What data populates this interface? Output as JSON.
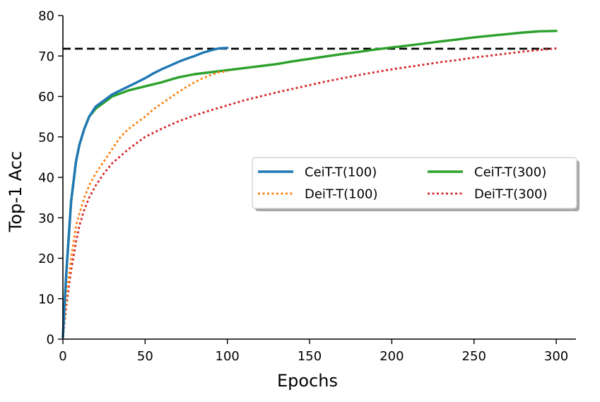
{
  "chart_data": {
    "type": "line",
    "title": "",
    "xlabel": "Epochs",
    "ylabel": "Top-1 Acc",
    "xlim": [
      0,
      312
    ],
    "ylim": [
      0,
      80
    ],
    "xticks": [
      0,
      50,
      100,
      150,
      200,
      250,
      300
    ],
    "yticks": [
      0,
      10,
      20,
      30,
      40,
      50,
      60,
      70,
      80
    ],
    "grid": false,
    "legend_position": "center-right",
    "reference_line": {
      "y": 71.8,
      "style": "dashed",
      "color": "#000000"
    },
    "series": [
      {
        "name": "CeiT-T(100)",
        "color": "#1f77b4",
        "style": "solid",
        "x": [
          0,
          2,
          5,
          8,
          10,
          13,
          16,
          20,
          25,
          30,
          35,
          40,
          45,
          50,
          55,
          60,
          65,
          70,
          75,
          80,
          85,
          90,
          95,
          100
        ],
        "y": [
          0.5,
          16,
          34,
          44,
          48,
          52,
          55,
          57.5,
          59,
          60.5,
          61.5,
          62.5,
          63.5,
          64.5,
          65.7,
          66.7,
          67.6,
          68.5,
          69.3,
          70,
          70.8,
          71.4,
          71.9,
          72
        ]
      },
      {
        "name": "DeiT-T(100)",
        "color": "#ff7f0e",
        "style": "dotted",
        "x": [
          0,
          2,
          5,
          8,
          10,
          13,
          16,
          20,
          25,
          30,
          35,
          40,
          45,
          50,
          55,
          60,
          65,
          70,
          75,
          80,
          85,
          90,
          95,
          100
        ],
        "y": [
          0.3,
          10,
          20,
          28,
          31,
          35,
          38,
          41,
          44,
          47,
          50,
          52,
          53.5,
          55,
          56.8,
          58.2,
          59.6,
          61,
          62.3,
          63.5,
          64.5,
          65.3,
          66,
          66.2
        ]
      },
      {
        "name": "CeiT-T(300)",
        "color": "#2ca02c",
        "style": "solid",
        "x": [
          0,
          2,
          5,
          8,
          10,
          13,
          16,
          20,
          25,
          30,
          40,
          50,
          60,
          70,
          80,
          90,
          100,
          110,
          120,
          130,
          140,
          150,
          160,
          170,
          180,
          190,
          200,
          210,
          220,
          230,
          240,
          250,
          260,
          270,
          280,
          290,
          300
        ],
        "y": [
          0.5,
          16,
          34,
          44,
          48,
          52,
          55,
          57,
          58.5,
          60,
          61.5,
          62.5,
          63.5,
          64.7,
          65.5,
          66,
          66.5,
          67,
          67.5,
          68,
          68.7,
          69.3,
          69.9,
          70.5,
          71,
          71.6,
          72.1,
          72.6,
          73.1,
          73.6,
          74.1,
          74.6,
          75,
          75.4,
          75.8,
          76.1,
          76.2
        ]
      },
      {
        "name": "DeiT-T(300)",
        "color": "#d62728",
        "style": "dotted",
        "x": [
          0,
          2,
          5,
          8,
          10,
          13,
          16,
          20,
          25,
          30,
          40,
          50,
          60,
          70,
          80,
          90,
          100,
          110,
          120,
          130,
          140,
          150,
          160,
          170,
          180,
          190,
          200,
          210,
          220,
          230,
          240,
          250,
          260,
          270,
          280,
          290,
          300
        ],
        "y": [
          0.3,
          8,
          17,
          24,
          28,
          32,
          35,
          38,
          41,
          43.5,
          47,
          50,
          52,
          53.8,
          55.3,
          56.6,
          57.8,
          59,
          60,
          61,
          61.9,
          62.8,
          63.7,
          64.5,
          65.3,
          66,
          66.7,
          67.3,
          67.9,
          68.5,
          69,
          69.6,
          70.1,
          70.6,
          71.1,
          71.5,
          71.9
        ]
      }
    ]
  }
}
